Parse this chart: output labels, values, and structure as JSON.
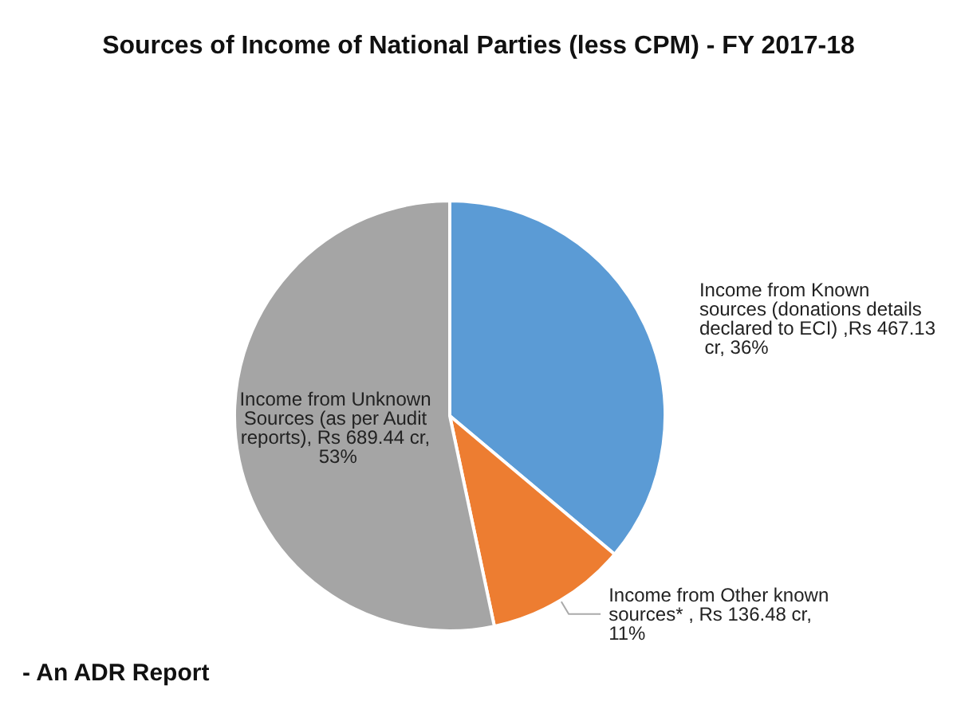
{
  "chart_data": {
    "type": "pie",
    "title": "Sources of Income of National Parties (less CPM) - FY 2017-18",
    "categories": [
      "Income from Known sources (donations details declared to ECI)",
      "Income from Other known sources*",
      "Income from Unknown Sources (as per Audit reports)"
    ],
    "values": [
      467.13,
      136.48,
      689.44
    ],
    "value_labels": [
      " ,Rs 467.13 cr, 36%",
      " , Rs 136.48 cr, 11%",
      ", Rs 689.44 cr, 53%"
    ],
    "colors": [
      "#5b9bd5",
      "#ed7d31",
      "#a5a5a5"
    ],
    "annotations": [
      "- An ADR Report"
    ],
    "legend": false
  }
}
